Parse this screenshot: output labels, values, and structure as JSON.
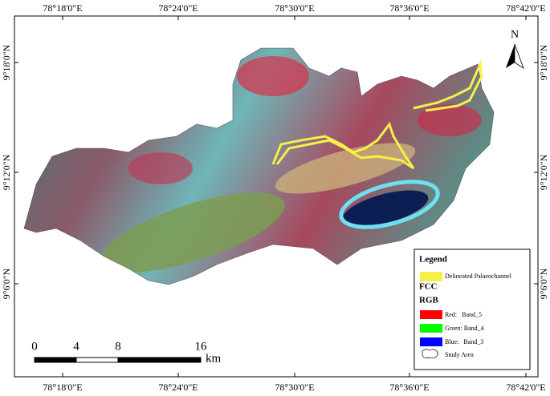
{
  "top_labels": [
    "78°18'0\"E",
    "78°24'0\"E",
    "78°30'0\"E",
    "78°36'0\"E",
    "78°42'0\"E"
  ],
  "bottom_labels": [
    "78°18'0\"E",
    "78°24'0\"E",
    "78°30'0\"E",
    "78°36'0\"E",
    "78°42'0\"E"
  ],
  "left_labels": [
    "9°18'0\"N",
    "9°12'0\"N",
    "9°6'0\"N"
  ],
  "right_labels": [
    "9°18'0\"N",
    "9°12'0\"N",
    "9°6'0\"N"
  ],
  "north": "N",
  "scale_bar": {
    "labels": [
      "0",
      "4",
      "8",
      "16"
    ],
    "unit": "km"
  },
  "legend": {
    "title": "Legend",
    "palaeochannel": "Delineated Palaeochannel",
    "fcc": "FCC",
    "rgb": "RGB",
    "bands": [
      "Red:   Band_5",
      "Green: Band_4",
      "Blue:   Band_3"
    ],
    "study_area": "Study Area"
  }
}
